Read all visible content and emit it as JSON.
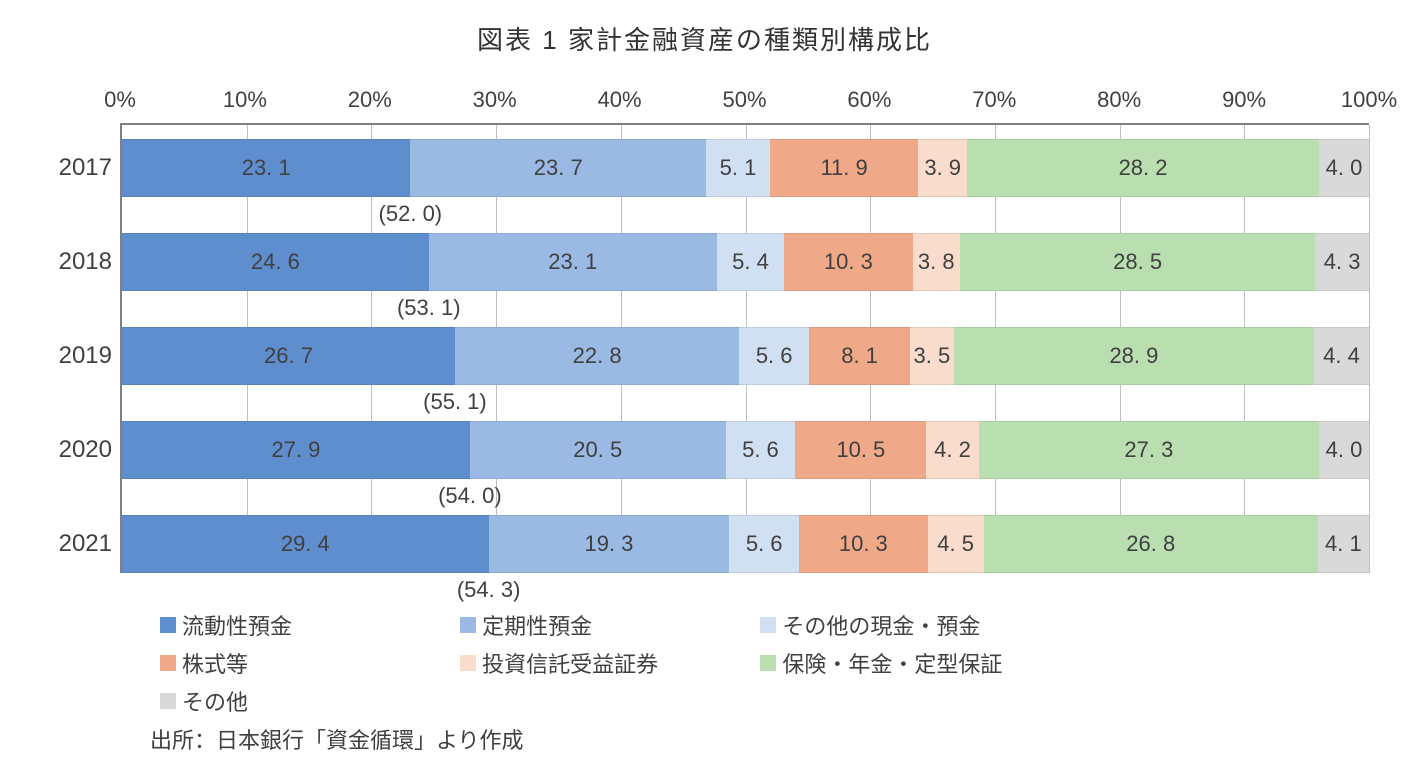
{
  "chart": {
    "type": "stacked-bar-horizontal-100pct",
    "title": "図表 1 家計金融資産の種類別構成比",
    "background_color": "#ffffff",
    "axis_color": "#808080",
    "grid_color": "#bfbfbf",
    "text_color": "#404040",
    "title_fontsize": 26,
    "axis_fontsize": 22,
    "value_fontsize": 22,
    "legend_fontsize": 22,
    "xaxis": {
      "min": 0,
      "max": 100,
      "unit": "%",
      "step": 10,
      "ticks": [
        "0%",
        "10%",
        "20%",
        "30%",
        "40%",
        "50%",
        "60%",
        "70%",
        "80%",
        "90%",
        "100%"
      ]
    },
    "series": [
      {
        "key": "liquid_deposits",
        "label": "流動性預金",
        "color": "#5f8ecf"
      },
      {
        "key": "time_deposits",
        "label": "定期性預金",
        "color": "#9ab9e3"
      },
      {
        "key": "other_cash",
        "label": "その他の現金・預金",
        "color": "#d1dff2"
      },
      {
        "key": "stocks",
        "label": "株式等",
        "color": "#f0a988"
      },
      {
        "key": "inv_trust",
        "label": "投資信託受益証券",
        "color": "#f9dccc"
      },
      {
        "key": "insurance_pension",
        "label": "保険・年金・定型保証",
        "color": "#b9dfb0"
      },
      {
        "key": "other",
        "label": "その他",
        "color": "#d9d9d9"
      }
    ],
    "legend_widths_pct": [
      24,
      24,
      28,
      24,
      24,
      28,
      24
    ],
    "years": [
      "2017",
      "2018",
      "2019",
      "2020",
      "2021"
    ],
    "data": {
      "2017": {
        "liquid_deposits": 23.1,
        "time_deposits": 23.7,
        "other_cash": 5.1,
        "stocks": 11.9,
        "inv_trust": 3.9,
        "insurance_pension": 28.2,
        "other": 4.0,
        "subtotal": 52.0
      },
      "2018": {
        "liquid_deposits": 24.6,
        "time_deposits": 23.1,
        "other_cash": 5.4,
        "stocks": 10.3,
        "inv_trust": 3.8,
        "insurance_pension": 28.5,
        "other": 4.3,
        "subtotal": 53.1
      },
      "2019": {
        "liquid_deposits": 26.7,
        "time_deposits": 22.8,
        "other_cash": 5.6,
        "stocks": 8.1,
        "inv_trust": 3.5,
        "insurance_pension": 28.9,
        "other": 4.4,
        "subtotal": 55.1
      },
      "2020": {
        "liquid_deposits": 27.9,
        "time_deposits": 20.5,
        "other_cash": 5.6,
        "stocks": 10.5,
        "inv_trust": 4.2,
        "insurance_pension": 27.3,
        "other": 4.0,
        "subtotal": 54.0
      },
      "2021": {
        "liquid_deposits": 29.4,
        "time_deposits": 19.3,
        "other_cash": 5.6,
        "stocks": 10.3,
        "inv_trust": 4.5,
        "insurance_pension": 26.8,
        "other": 4.1,
        "subtotal": 54.3
      }
    },
    "subtotal_series": [
      "liquid_deposits",
      "time_deposits",
      "other_cash"
    ],
    "source_note": "出所：日本銀行「資金循環」より作成"
  }
}
